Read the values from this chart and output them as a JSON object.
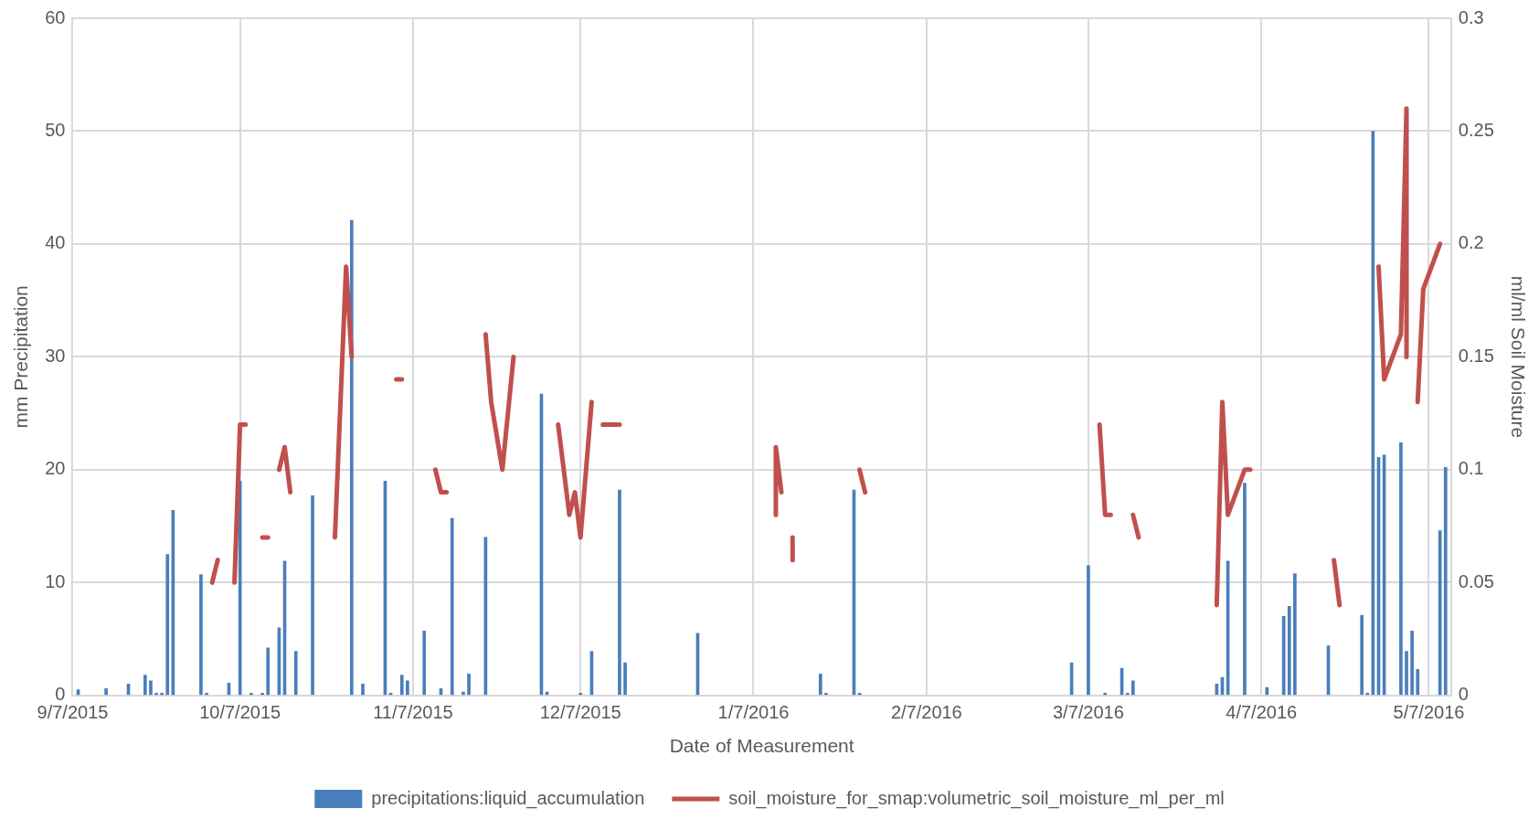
{
  "chart_data": {
    "type": "bar",
    "xlabel": "Date of Measurement",
    "ylabel": "mm Precipitation",
    "y2label": "ml/ml Soil Moisture",
    "xlim": [
      "2015-09-07",
      "2016-05-11"
    ],
    "xticks": [
      {
        "value": "2015-09-07",
        "label": "9/7/2015"
      },
      {
        "value": "2015-10-07",
        "label": "10/7/2015"
      },
      {
        "value": "2015-11-07",
        "label": "11/7/2015"
      },
      {
        "value": "2015-12-07",
        "label": "12/7/2015"
      },
      {
        "value": "2016-01-07",
        "label": "1/7/2016"
      },
      {
        "value": "2016-02-07",
        "label": "2/7/2016"
      },
      {
        "value": "2016-03-07",
        "label": "3/7/2016"
      },
      {
        "value": "2016-04-07",
        "label": "4/7/2016"
      },
      {
        "value": "2016-05-07",
        "label": "5/7/2016"
      }
    ],
    "ylim": [
      0,
      60
    ],
    "yticks": [
      0,
      10,
      20,
      30,
      40,
      50,
      60
    ],
    "y2lim": [
      0,
      0.3
    ],
    "y2ticks": [
      0,
      0.05,
      0.1,
      0.15,
      0.2,
      0.25,
      0.3
    ],
    "grid": true,
    "legend": "bottom",
    "marker": "none",
    "line_style": "solid",
    "series": [
      {
        "name": "precipitations:liquid_accumulation",
        "color": "#4a7ebb",
        "x": [
          "2015-09-08",
          "2015-09-13",
          "2015-09-17",
          "2015-09-20",
          "2015-09-21",
          "2015-09-22",
          "2015-09-23",
          "2015-09-24",
          "2015-09-25",
          "2015-09-30",
          "2015-10-01",
          "2015-10-05",
          "2015-10-07",
          "2015-10-09",
          "2015-10-11",
          "2015-10-12",
          "2015-10-14",
          "2015-10-15",
          "2015-10-17",
          "2015-10-20",
          "2015-10-27",
          "2015-10-29",
          "2015-11-02",
          "2015-11-03",
          "2015-11-05",
          "2015-11-06",
          "2015-11-09",
          "2015-11-12",
          "2015-11-14",
          "2015-11-16",
          "2015-11-17",
          "2015-11-20",
          "2015-11-30",
          "2015-12-01",
          "2015-12-07",
          "2015-12-09",
          "2015-12-14",
          "2015-12-15",
          "2015-12-28",
          "2016-01-19",
          "2016-01-20",
          "2016-01-25",
          "2016-01-26",
          "2016-03-04",
          "2016-03-07",
          "2016-03-10",
          "2016-03-13",
          "2016-03-14",
          "2016-03-15",
          "2016-03-30",
          "2016-03-31",
          "2016-04-01",
          "2016-04-04",
          "2016-04-08",
          "2016-04-11",
          "2016-04-12",
          "2016-04-13",
          "2016-04-19",
          "2016-04-25",
          "2016-04-26",
          "2016-04-27",
          "2016-04-28",
          "2016-04-29",
          "2016-05-02",
          "2016-05-03",
          "2016-05-04",
          "2016-05-05",
          "2016-05-09",
          "2016-05-10"
        ],
        "values": [
          0.5,
          0.6,
          1,
          1.8,
          1.3,
          0.2,
          0.2,
          12.5,
          16.4,
          10.7,
          0.2,
          1.1,
          19,
          0.2,
          0.2,
          4.2,
          6,
          11.9,
          3.9,
          17.7,
          42.1,
          1,
          19,
          0.2,
          1.8,
          1.3,
          5.7,
          0.6,
          15.7,
          0.3,
          1.9,
          14,
          26.7,
          0.3,
          0.2,
          3.9,
          18.2,
          2.9,
          5.5,
          1.9,
          0.2,
          18.2,
          0.2,
          2.9,
          11.5,
          0.2,
          2.4,
          0.2,
          1.3,
          1,
          1.6,
          11.9,
          18.8,
          0.7,
          7,
          7.9,
          10.8,
          4.4,
          7.1,
          0.2,
          50,
          21.1,
          21.3,
          22.4,
          3.9,
          5.7,
          2.3,
          14.6,
          20.2
        ]
      },
      {
        "name": "soil_moisture_for_smap:volumetric_soil_moisture_ml_per_ml",
        "type": "line",
        "axis": "y2",
        "color": "#c0504d",
        "x": [
          "2015-10-02",
          "2015-10-03",
          "2015-10-04",
          "2015-10-06",
          "2015-10-07",
          "2015-10-08",
          "2015-10-09",
          "2015-10-11",
          "2015-10-12",
          "2015-10-13",
          "2015-10-14",
          "2015-10-15",
          "2015-10-16",
          "2015-10-20",
          "2015-10-24",
          "2015-10-26",
          "2015-10-27",
          "2015-10-30",
          "2015-11-04",
          "2015-11-05",
          "2015-11-08",
          "2015-11-11",
          "2015-11-12",
          "2015-11-13",
          "2015-11-17",
          "2015-11-20",
          "2015-11-21",
          "2015-11-23",
          "2015-11-25",
          "2015-11-30",
          "2015-12-03",
          "2015-12-05",
          "2015-12-06",
          "2015-12-07",
          "2015-12-09",
          "2015-12-10",
          "2015-12-11",
          "2015-12-14",
          "2016-01-01",
          "2016-01-11",
          "2016-01-11",
          "2016-01-12",
          "2016-01-13",
          "2016-01-14",
          "2016-01-14",
          "2016-01-20",
          "2016-01-26",
          "2016-01-27",
          "2016-02-20",
          "2016-03-09",
          "2016-03-10",
          "2016-03-11",
          "2016-03-13",
          "2016-03-15",
          "2016-03-16",
          "2016-03-25",
          "2016-03-30",
          "2016-03-31",
          "2016-04-01",
          "2016-04-04",
          "2016-04-05",
          "2016-04-15",
          "2016-04-20",
          "2016-04-21",
          "2016-04-25",
          "2016-04-28",
          "2016-04-29",
          "2016-05-02",
          "2016-05-03",
          "2016-05-03",
          "2016-05-04",
          "2016-05-05",
          "2016-05-06",
          "2016-05-09"
        ],
        "values": [
          0.05,
          0.06,
          null,
          0.05,
          0.12,
          0.12,
          null,
          0.07,
          0.07,
          null,
          0.1,
          0.11,
          0.09,
          null,
          0.07,
          0.19,
          0.15,
          null,
          0.14,
          0.14,
          null,
          0.1,
          0.09,
          0.09,
          null,
          0.16,
          0.13,
          0.1,
          0.15,
          null,
          0.12,
          0.08,
          0.09,
          0.07,
          0.13,
          null,
          0.12,
          0.12,
          null,
          0.08,
          0.11,
          0.09,
          null,
          0.07,
          0.06,
          null,
          0.1,
          0.09,
          null,
          0.12,
          0.08,
          0.08,
          null,
          0.08,
          0.07,
          null,
          0.04,
          0.13,
          0.08,
          0.1,
          0.1,
          null,
          0.06,
          0.04,
          null,
          0.19,
          0.14,
          0.16,
          0.26,
          0.15,
          null,
          0.13,
          0.18,
          0.2
        ]
      }
    ]
  }
}
